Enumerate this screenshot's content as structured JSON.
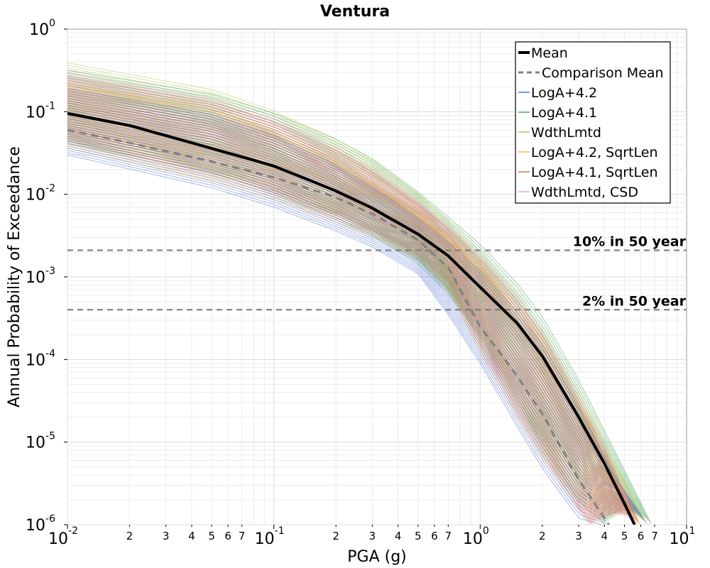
{
  "chart_data": {
    "type": "line",
    "title": "Ventura",
    "xlabel": "PGA (g)",
    "ylabel": "Annual Probability of Exceedance",
    "x_scale": "log",
    "y_scale": "log",
    "xlim": [
      0.01,
      10
    ],
    "ylim": [
      1e-06,
      1
    ],
    "grid": true,
    "legend_position": "top-right",
    "x_ticks": [
      {
        "base": "10",
        "exp": "-2"
      },
      {
        "base": "10",
        "exp": "-1"
      },
      {
        "base": "10",
        "exp": "0"
      },
      {
        "base": "10",
        "exp": "1"
      }
    ],
    "y_ticks": [
      {
        "base": "10",
        "exp": "0"
      },
      {
        "base": "10",
        "exp": "-1"
      },
      {
        "base": "10",
        "exp": "-2"
      },
      {
        "base": "10",
        "exp": "-3"
      },
      {
        "base": "10",
        "exp": "-4"
      },
      {
        "base": "10",
        "exp": "-5"
      },
      {
        "base": "10",
        "exp": "-6"
      }
    ],
    "x_minor_tick_labels": [
      "2",
      "3",
      "4",
      "5",
      "6",
      "7"
    ],
    "reference_lines": [
      {
        "label": "10% in 50 year",
        "y": 0.0021
      },
      {
        "label": "2% in 50 year",
        "y": 0.0004
      }
    ],
    "legend": [
      {
        "label": "Mean",
        "color": "#000000",
        "style": "solid-thick"
      },
      {
        "label": "Comparison Mean",
        "color": "#808080",
        "style": "dashed"
      },
      {
        "label": "LogA+4.2",
        "color": "#3b5fcf",
        "style": "solid"
      },
      {
        "label": "LogA+4.1",
        "color": "#3a9a4a",
        "style": "solid"
      },
      {
        "label": "WdthLmtd",
        "color": "#a8c040",
        "style": "solid"
      },
      {
        "label": "LogA+4.2, SqrtLen",
        "color": "#f0b020",
        "style": "solid"
      },
      {
        "label": "LogA+4.1, SqrtLen",
        "color": "#d06040",
        "style": "solid"
      },
      {
        "label": "WdthLmtd, CSD",
        "color": "#f090d8",
        "style": "solid"
      }
    ],
    "series": [
      {
        "name": "Mean",
        "color": "#000000",
        "x": [
          0.01,
          0.02,
          0.05,
          0.1,
          0.2,
          0.3,
          0.5,
          0.7,
          1.0,
          1.5,
          2.0,
          3.0,
          4.0,
          5.0,
          5.6
        ],
        "y": [
          0.095,
          0.068,
          0.036,
          0.022,
          0.011,
          0.0068,
          0.0033,
          0.0018,
          0.00075,
          0.00028,
          0.00011,
          2e-05,
          5.5e-06,
          1.8e-06,
          1e-06
        ]
      },
      {
        "name": "Comparison Mean",
        "color": "#808080",
        "x": [
          0.01,
          0.02,
          0.05,
          0.1,
          0.2,
          0.3,
          0.5,
          0.7,
          1.0,
          1.5,
          2.0,
          3.0,
          4.0,
          4.2
        ],
        "y": [
          0.06,
          0.042,
          0.025,
          0.016,
          0.0092,
          0.0058,
          0.0028,
          0.0013,
          0.00025,
          6.5e-05,
          2.2e-05,
          3.5e-06,
          1.2e-06,
          1e-06
        ]
      }
    ],
    "band_families": [
      {
        "name": "LogA+4.2",
        "color": "#3b5fcf",
        "lower": {
          "x": [
            0.01,
            0.05,
            0.1,
            0.2,
            0.3,
            0.5,
            0.7,
            1.0,
            1.5,
            2.0,
            3.0,
            3.9
          ],
          "y": [
            0.03,
            0.012,
            0.007,
            0.0036,
            0.0023,
            0.0011,
            0.00035,
            9e-05,
            1.6e-05,
            4.8e-06,
            1.2e-06,
            1e-06
          ]
        },
        "upper": {
          "x": [
            0.01,
            0.05,
            0.1,
            0.2,
            0.3,
            0.5,
            0.7,
            1.0,
            1.5,
            2.0,
            3.0,
            4.5,
            6.5
          ],
          "y": [
            0.2,
            0.1,
            0.055,
            0.024,
            0.013,
            0.0055,
            0.0028,
            0.0013,
            0.00042,
            0.00017,
            3e-05,
            4e-06,
            1e-06
          ]
        }
      },
      {
        "name": "LogA+4.1",
        "color": "#3a9a4a",
        "lower": {
          "x": [
            0.01,
            0.05,
            0.1,
            0.2,
            0.3,
            0.5,
            0.7,
            1.0,
            1.5,
            2.0,
            3.0,
            4.0
          ],
          "y": [
            0.04,
            0.018,
            0.01,
            0.005,
            0.0031,
            0.0014,
            0.0006,
            0.00018,
            3e-05,
            8.5e-06,
            1.8e-06,
            1e-06
          ]
        },
        "upper": {
          "x": [
            0.01,
            0.05,
            0.1,
            0.2,
            0.3,
            0.5,
            0.7,
            1.0,
            1.5,
            2.0,
            3.0,
            4.5,
            6.8
          ],
          "y": [
            0.33,
            0.17,
            0.1,
            0.048,
            0.028,
            0.011,
            0.0055,
            0.0026,
            0.0009,
            0.00035,
            6e-05,
            8e-06,
            1e-06
          ]
        }
      },
      {
        "name": "WdthLmtd",
        "color": "#a8c040",
        "lower": {
          "x": [
            0.01,
            0.05,
            0.1,
            0.2,
            0.3,
            0.5,
            0.7,
            1.0,
            1.5,
            2.0,
            3.0,
            4.0
          ],
          "y": [
            0.05,
            0.02,
            0.012,
            0.006,
            0.0036,
            0.0016,
            0.0007,
            0.0002,
            3.5e-05,
            1e-05,
            2e-06,
            1e-06
          ]
        },
        "upper": {
          "x": [
            0.01,
            0.05,
            0.1,
            0.2,
            0.3,
            0.5,
            0.7,
            1.0,
            1.5,
            2.0,
            3.0,
            4.5,
            6.5
          ],
          "y": [
            0.42,
            0.2,
            0.11,
            0.05,
            0.028,
            0.011,
            0.005,
            0.0022,
            0.0007,
            0.00026,
            4.5e-05,
            6e-06,
            1e-06
          ]
        }
      },
      {
        "name": "LogA+4.2, SqrtLen",
        "color": "#f0b020",
        "lower": {
          "x": [
            0.01,
            0.05,
            0.1,
            0.2,
            0.3,
            0.5,
            0.7,
            1.0,
            1.5,
            2.0,
            3.0,
            3.4
          ],
          "y": [
            0.035,
            0.014,
            0.0085,
            0.0045,
            0.003,
            0.0016,
            0.0007,
            0.00012,
            2e-05,
            6.2e-06,
            1.4e-06,
            1e-06
          ]
        },
        "upper": {
          "x": [
            0.01,
            0.05,
            0.1,
            0.2,
            0.3,
            0.5,
            0.7,
            1.0,
            1.5,
            2.0,
            3.0,
            4.5,
            6.0
          ],
          "y": [
            0.22,
            0.11,
            0.06,
            0.026,
            0.014,
            0.006,
            0.003,
            0.0014,
            0.00045,
            0.00018,
            3e-05,
            4.2e-06,
            1e-06
          ]
        }
      },
      {
        "name": "LogA+4.1, SqrtLen",
        "color": "#d06040",
        "lower": {
          "x": [
            0.01,
            0.05,
            0.1,
            0.2,
            0.3,
            0.5,
            0.7,
            1.0,
            1.5,
            2.0,
            3.0,
            3.5
          ],
          "y": [
            0.045,
            0.018,
            0.011,
            0.0058,
            0.0037,
            0.0019,
            0.0009,
            0.00016,
            2.6e-05,
            7.8e-06,
            1.6e-06,
            1e-06
          ]
        },
        "upper": {
          "x": [
            0.01,
            0.05,
            0.1,
            0.2,
            0.3,
            0.5,
            0.7,
            1.0,
            1.5,
            2.0,
            3.0,
            4.5,
            6.0
          ],
          "y": [
            0.28,
            0.14,
            0.08,
            0.036,
            0.02,
            0.008,
            0.004,
            0.0018,
            0.00058,
            0.00022,
            3.6e-05,
            4.8e-06,
            1e-06
          ]
        }
      },
      {
        "name": "WdthLmtd, CSD",
        "color": "#f090d8",
        "lower": {
          "x": [
            0.01,
            0.05,
            0.1,
            0.2,
            0.3,
            0.5,
            0.7,
            1.0,
            1.5,
            2.0,
            3.0,
            3.3
          ],
          "y": [
            0.04,
            0.016,
            0.0095,
            0.005,
            0.0033,
            0.0017,
            0.0008,
            0.00014,
            2.2e-05,
            6.6e-06,
            1.5e-06,
            1e-06
          ]
        },
        "upper": {
          "x": [
            0.01,
            0.05,
            0.1,
            0.2,
            0.3,
            0.5,
            0.7,
            1.0,
            1.5,
            2.0,
            3.0,
            4.5,
            5.8
          ],
          "y": [
            0.3,
            0.15,
            0.085,
            0.038,
            0.021,
            0.0085,
            0.0042,
            0.0019,
            0.0006,
            0.00023,
            3.8e-05,
            5e-06,
            1e-06
          ]
        }
      }
    ]
  }
}
